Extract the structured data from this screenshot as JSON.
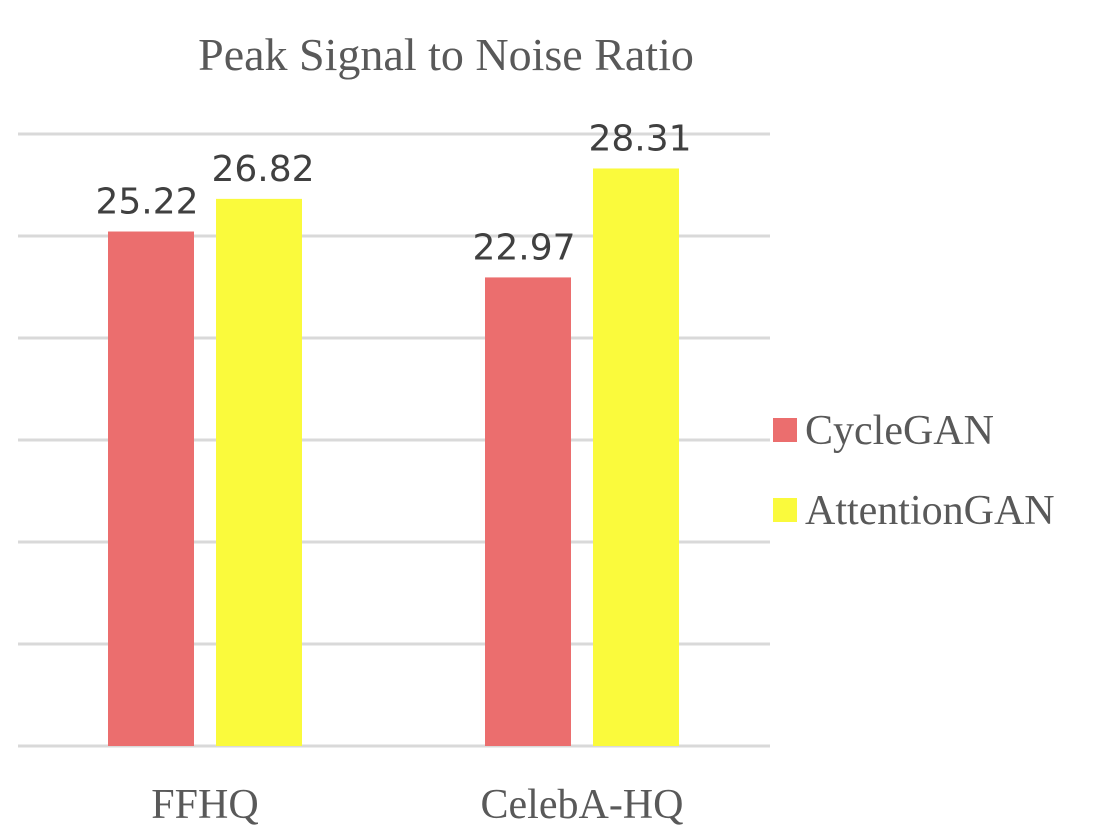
{
  "chart_data": {
    "type": "bar",
    "title": "Peak Signal to Noise Ratio",
    "xlabel": "",
    "ylabel": "",
    "categories": [
      "FFHQ",
      "CelebA-HQ"
    ],
    "series": [
      {
        "name": "CycleGAN",
        "values": [
          25.22,
          22.97
        ],
        "color": "#eb6e6e"
      },
      {
        "name": "AttentionGAN",
        "values": [
          26.82,
          28.31
        ],
        "color": "#fafa3c"
      }
    ],
    "ylim": [
      0,
      30
    ],
    "ytick_step": 5,
    "grid": true,
    "legend": "right",
    "value_labels": true
  }
}
